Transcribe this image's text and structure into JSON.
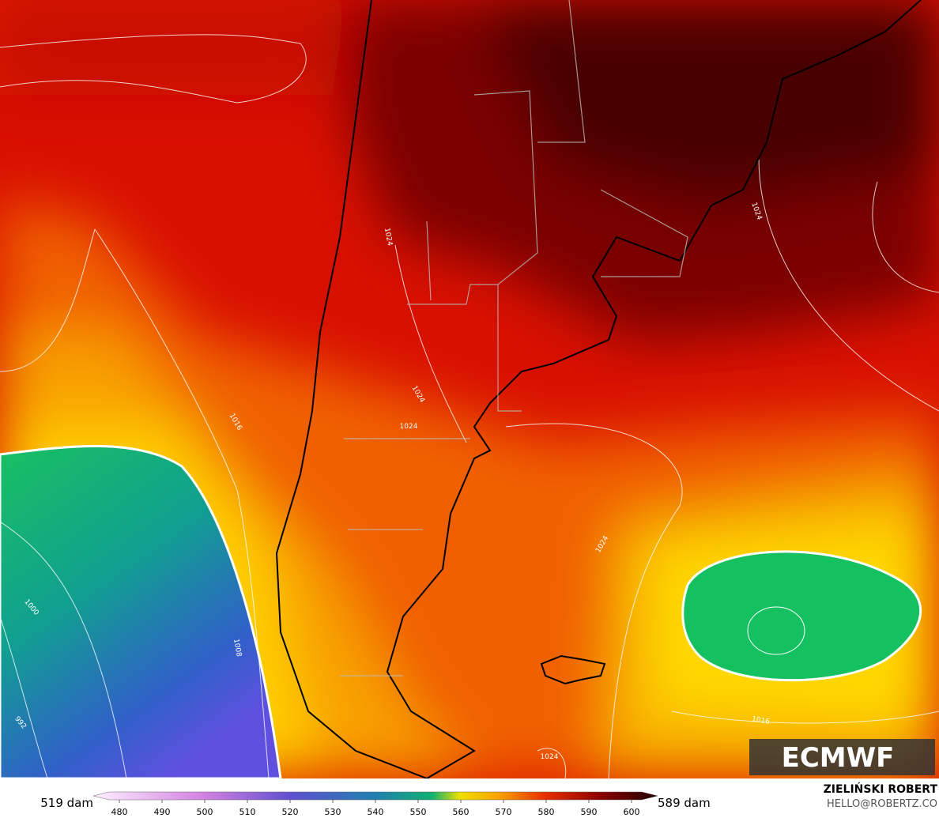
{
  "map": {
    "min_label": "519 dam",
    "max_label": "589 dam",
    "colorbar_ticks": [
      480,
      490,
      500,
      510,
      520,
      530,
      540,
      550,
      560,
      570,
      580,
      590,
      600
    ],
    "isobar_labels": [
      "1024",
      "1024",
      "1024",
      "1024",
      "1024",
      "1024",
      "1016",
      "1016",
      "1008",
      "1000",
      "992"
    ],
    "logo": "ECMWF",
    "author": "ZIELIŃSKI ROBERT",
    "contact": "HELLO@ROBERTZ.CO"
  }
}
